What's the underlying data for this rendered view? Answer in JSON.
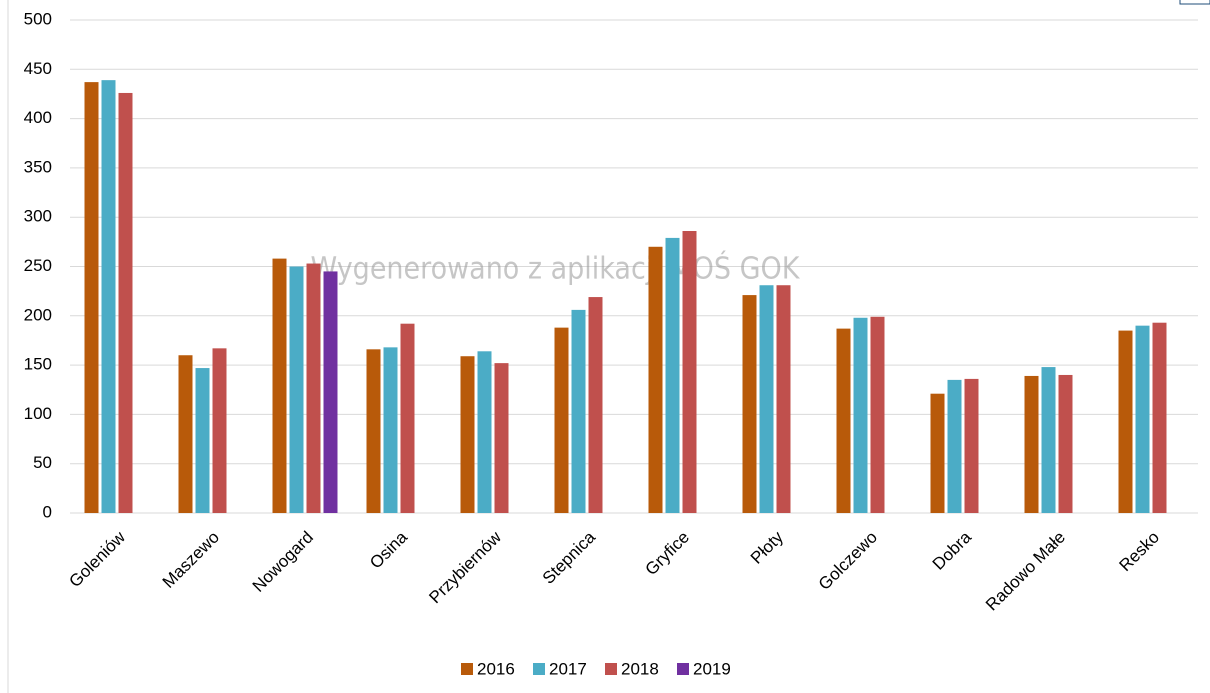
{
  "chart_data": {
    "type": "bar",
    "watermark": "Wygenerowano z aplikacji MOŚ GOK",
    "categories": [
      "Goleniów",
      "Maszewo",
      "Nowogard",
      "Osina",
      "Przybiernów",
      "Stepnica",
      "Gryfice",
      "Płoty",
      "Golczewo",
      "Dobra",
      "Radowo Małe",
      "Resko"
    ],
    "series": [
      {
        "name": "2016",
        "color": "#b85a0a",
        "values": [
          437,
          160,
          258,
          166,
          159,
          188,
          270,
          221,
          187,
          121,
          139,
          185
        ]
      },
      {
        "name": "2017",
        "color": "#4bacc6",
        "values": [
          439,
          147,
          250,
          168,
          164,
          206,
          279,
          231,
          198,
          135,
          148,
          190
        ]
      },
      {
        "name": "2018",
        "color": "#c0504d",
        "values": [
          426,
          167,
          253,
          192,
          152,
          219,
          286,
          231,
          199,
          136,
          140,
          193
        ]
      },
      {
        "name": "2019",
        "color": "#7030a0",
        "values": [
          null,
          null,
          245,
          null,
          null,
          null,
          null,
          null,
          null,
          null,
          null,
          null
        ]
      }
    ],
    "ylim": [
      0,
      500
    ],
    "yticks": [
      0,
      50,
      100,
      150,
      200,
      250,
      300,
      350,
      400,
      450,
      500
    ],
    "grid": true,
    "legend": "bottom"
  }
}
